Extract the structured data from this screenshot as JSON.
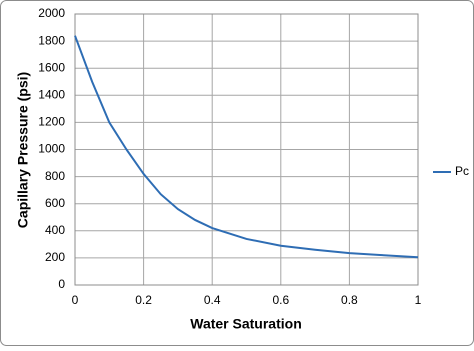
{
  "chart_data": {
    "type": "line",
    "x_label": "Water Saturation",
    "y_label": "Capillary Pressure (psi)",
    "x": [
      0,
      0.05,
      0.1,
      0.15,
      0.2,
      0.25,
      0.3,
      0.35,
      0.4,
      0.5,
      0.6,
      0.7,
      0.8,
      0.9,
      1.0
    ],
    "series": [
      {
        "name": "Pc",
        "color": "#2e6db4",
        "values": [
          1840,
          1500,
          1200,
          1000,
          820,
          670,
          560,
          480,
          420,
          340,
          290,
          260,
          235,
          220,
          205
        ]
      }
    ],
    "xlim": [
      0,
      1
    ],
    "xticks": [
      0,
      0.2,
      0.4,
      0.6,
      0.8,
      1
    ],
    "ylim": [
      0,
      2000
    ],
    "yticks": [
      0,
      200,
      400,
      600,
      800,
      1000,
      1200,
      1400,
      1600,
      1800,
      2000
    ],
    "grid": true,
    "legend": "right"
  }
}
